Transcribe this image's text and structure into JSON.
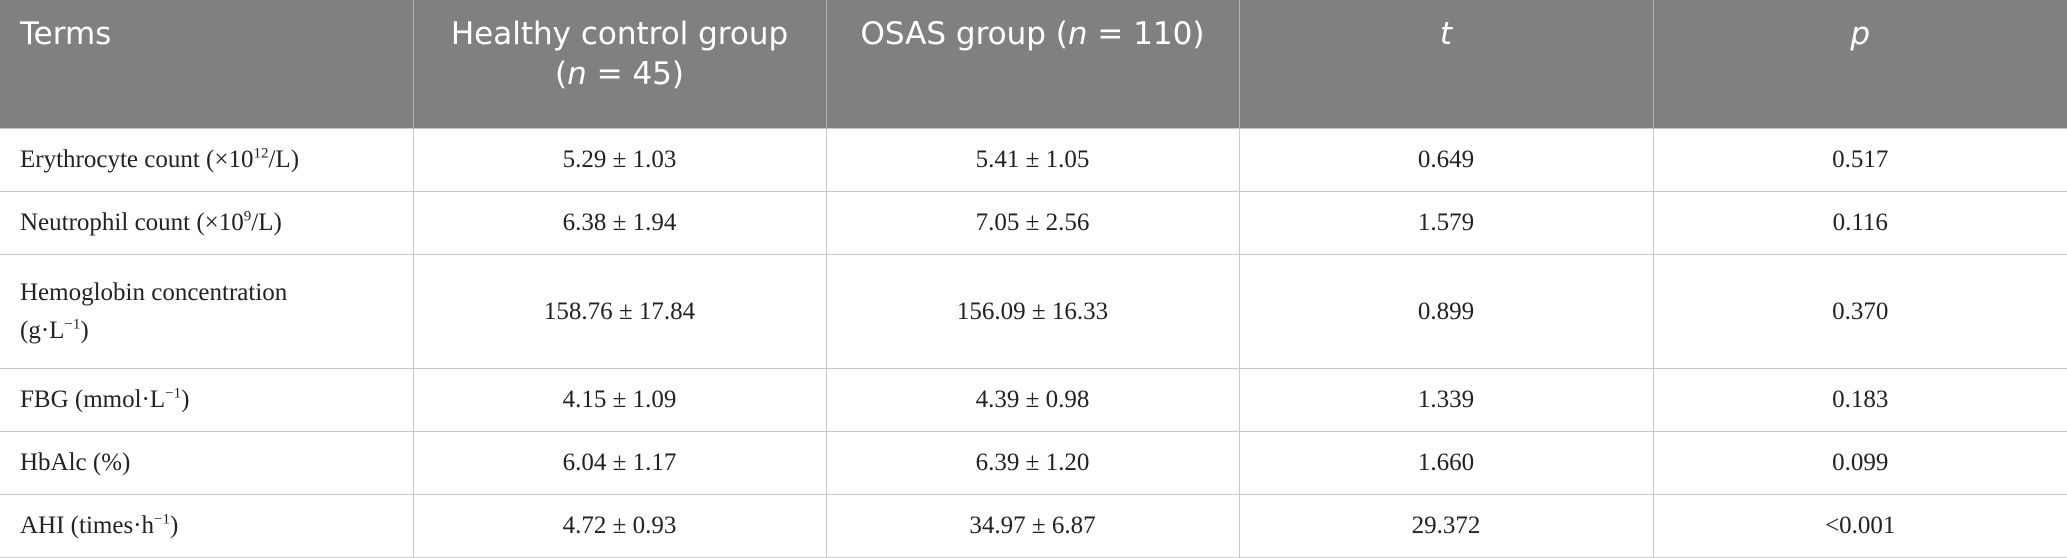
{
  "table": {
    "columns": [
      "Terms",
      [
        "Healthy control group (",
        "n",
        " = 45)"
      ],
      [
        "OSAS group (",
        "n",
        " = 110)"
      ],
      "t",
      "p"
    ],
    "rows": [
      {
        "term": [
          "Erythrocyte count (×10",
          "12",
          "/L)"
        ],
        "cells": [
          "5.29 ± 1.03",
          "5.41 ± 1.05",
          "0.649",
          "0.517"
        ]
      },
      {
        "term": [
          "Neutrophil count (×10",
          "9",
          "/L)"
        ],
        "cells": [
          "6.38 ± 1.94",
          "7.05 ± 2.56",
          "1.579",
          "0.116"
        ]
      },
      {
        "term": [
          "Hemoglobin concentration (g·L",
          "−1",
          ")"
        ],
        "cells": [
          "158.76 ± 17.84",
          "156.09 ± 16.33",
          "0.899",
          "0.370"
        ]
      },
      {
        "term": [
          "FBG (mmol·L",
          "−1",
          ")"
        ],
        "cells": [
          "4.15 ± 1.09",
          "4.39 ± 0.98",
          "1.339",
          "0.183"
        ]
      },
      {
        "term": [
          "HbAlc (%)"
        ],
        "cells": [
          "6.04 ± 1.17",
          "6.39 ± 1.20",
          "1.660",
          "0.099"
        ]
      },
      {
        "term": [
          "AHI (times·h",
          "−1",
          ")"
        ],
        "cells": [
          "4.72 ± 0.93",
          "34.97 ± 6.87",
          "29.372",
          "<0.001"
        ]
      }
    ]
  }
}
